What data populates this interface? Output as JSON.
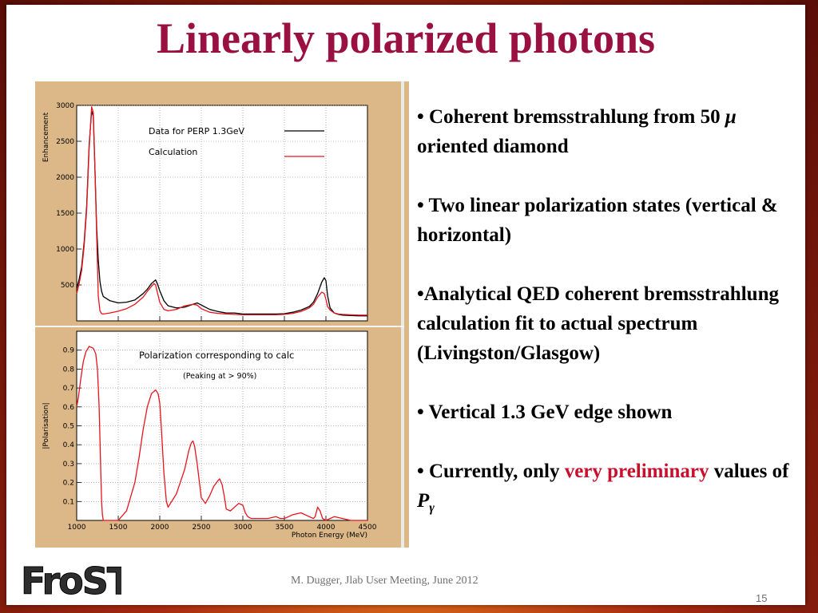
{
  "slide": {
    "title": "Linearly polarized photons",
    "footer": "M. Dugger, Jlab User Meeting, June 2012",
    "page_number": "15",
    "logo_text": "FroST"
  },
  "bullets": [
    {
      "parts": [
        {
          "text": "• Coherent bremsstrahlung from 50 "
        },
        {
          "text": "μ",
          "italic": true
        },
        {
          "text": " oriented diamond"
        }
      ]
    },
    {
      "parts": [
        {
          "text": "• Two linear polarization states (vertical & horizontal)"
        }
      ]
    },
    {
      "parts": [
        {
          "text": "•Analytical QED coherent bremsstrahlung calculation fit to actual spectrum (Livingston/Glasgow)"
        }
      ]
    },
    {
      "parts": [
        {
          "text": "• Vertical 1.3 GeV edge shown"
        }
      ]
    },
    {
      "parts": [
        {
          "text": "• Currently, only "
        },
        {
          "text": "very preliminary",
          "red": true
        },
        {
          "text": " values of "
        },
        {
          "text": "P",
          "italic": true
        },
        {
          "text": "γ",
          "italic": true,
          "sub": true
        }
      ]
    }
  ],
  "colors": {
    "title": "#9a1040",
    "frame_bg": "#dcb889",
    "data_line": "#000000",
    "calc_line": "#e8141c",
    "highlight": "#c8102e"
  },
  "chart_data": [
    {
      "type": "line",
      "title": "",
      "ylabel": "Enhancement",
      "xlabel": "",
      "xlim": [
        1000,
        4500
      ],
      "ylim": [
        0,
        3000
      ],
      "yticks": [
        500,
        1000,
        1500,
        2000,
        2500,
        3000
      ],
      "y_tick_labels": [
        "500",
        "1000",
        "1500",
        "2000",
        "2500",
        "3000"
      ],
      "grid": true,
      "legend_position": "top-center",
      "series": [
        {
          "name": "Data for PERP 1.3GeV",
          "color": "#000000",
          "x": [
            1000,
            1030,
            1060,
            1090,
            1120,
            1150,
            1180,
            1200,
            1220,
            1240,
            1260,
            1280,
            1300,
            1320,
            1400,
            1500,
            1600,
            1700,
            1800,
            1850,
            1900,
            1930,
            1950,
            1970,
            2000,
            2050,
            2100,
            2200,
            2300,
            2400,
            2450,
            2500,
            2600,
            2700,
            2800,
            2900,
            3000,
            3200,
            3400,
            3500,
            3600,
            3700,
            3800,
            3850,
            3900,
            3950,
            3980,
            4000,
            4020,
            4050,
            4100,
            4150,
            4200,
            4300,
            4400,
            4450,
            4500
          ],
          "y": [
            450,
            580,
            750,
            1100,
            1600,
            2450,
            2920,
            2850,
            2100,
            1300,
            850,
            550,
            410,
            340,
            280,
            250,
            260,
            290,
            380,
            440,
            520,
            550,
            570,
            520,
            420,
            280,
            210,
            180,
            190,
            230,
            250,
            220,
            160,
            130,
            110,
            110,
            95,
            95,
            95,
            100,
            120,
            150,
            200,
            260,
            380,
            540,
            600,
            560,
            350,
            180,
            110,
            90,
            80,
            75,
            70,
            70,
            70
          ]
        },
        {
          "name": "Calculation",
          "color": "#e8141c",
          "x": [
            1000,
            1030,
            1060,
            1090,
            1120,
            1150,
            1180,
            1200,
            1220,
            1240,
            1260,
            1280,
            1300,
            1320,
            1400,
            1500,
            1600,
            1700,
            1800,
            1850,
            1900,
            1930,
            1950,
            1970,
            2000,
            2050,
            2100,
            2200,
            2300,
            2400,
            2450,
            2500,
            2600,
            2700,
            2800,
            2900,
            3000,
            3200,
            3400,
            3500,
            3600,
            3700,
            3800,
            3850,
            3900,
            3950,
            3980,
            4000,
            4020,
            4050,
            4100,
            4150,
            4200,
            4300,
            4400,
            4450,
            4500
          ],
          "y": [
            380,
            520,
            700,
            1050,
            1550,
            2400,
            2980,
            2900,
            2100,
            1200,
            350,
            140,
            100,
            95,
            110,
            135,
            170,
            230,
            330,
            410,
            480,
            520,
            500,
            400,
            260,
            160,
            140,
            160,
            210,
            230,
            220,
            170,
            120,
            105,
            95,
            90,
            85,
            85,
            85,
            90,
            105,
            130,
            180,
            230,
            330,
            400,
            380,
            300,
            200,
            150,
            110,
            95,
            90,
            85,
            80,
            80,
            80
          ]
        }
      ]
    },
    {
      "type": "line",
      "title": "Polarization corresponding to calc",
      "subtitle": "(Peaking at > 90%)",
      "xlabel": "Photon Energy (MeV)",
      "ylabel": "|Polarisation|",
      "xlim": [
        1000,
        4500
      ],
      "ylim": [
        0,
        1.0
      ],
      "xticks": [
        1000,
        1500,
        2000,
        2500,
        3000,
        3500,
        4000,
        4500
      ],
      "x_tick_labels": [
        "1000",
        "1500",
        "2000",
        "2500",
        "3000",
        "3500",
        "4000",
        "4500"
      ],
      "yticks": [
        0.1,
        0.2,
        0.3,
        0.4,
        0.5,
        0.6,
        0.7,
        0.8,
        0.9
      ],
      "y_tick_labels": [
        "0.1",
        "0.2",
        "0.3",
        "0.4",
        "0.5",
        "0.6",
        "0.7",
        "0.8",
        "0.9"
      ],
      "grid": true,
      "series": [
        {
          "name": "",
          "color": "#e8141c",
          "x": [
            1000,
            1020,
            1050,
            1080,
            1110,
            1150,
            1200,
            1230,
            1250,
            1270,
            1290,
            1300,
            1310,
            1320,
            1400,
            1500,
            1600,
            1700,
            1750,
            1800,
            1850,
            1900,
            1950,
            1980,
            2000,
            2020,
            2050,
            2080,
            2100,
            2200,
            2300,
            2350,
            2380,
            2400,
            2420,
            2450,
            2500,
            2550,
            2600,
            2650,
            2700,
            2720,
            2750,
            2780,
            2800,
            2850,
            2900,
            2950,
            3000,
            3030,
            3060,
            3100,
            3200,
            3300,
            3400,
            3450,
            3500,
            3550,
            3600,
            3700,
            3800,
            3850,
            3870,
            3900,
            3930,
            3960,
            4000,
            4050,
            4100,
            4200,
            4300,
            4400,
            4500
          ],
          "y": [
            0.6,
            0.65,
            0.75,
            0.84,
            0.89,
            0.92,
            0.91,
            0.88,
            0.8,
            0.6,
            0.25,
            0.1,
            0.03,
            0.0,
            0.0,
            0.0,
            0.05,
            0.2,
            0.33,
            0.48,
            0.6,
            0.67,
            0.69,
            0.67,
            0.62,
            0.48,
            0.25,
            0.1,
            0.07,
            0.14,
            0.27,
            0.37,
            0.41,
            0.42,
            0.39,
            0.3,
            0.12,
            0.09,
            0.13,
            0.18,
            0.21,
            0.22,
            0.19,
            0.12,
            0.06,
            0.05,
            0.07,
            0.09,
            0.08,
            0.04,
            0.02,
            0.01,
            0.01,
            0.01,
            0.02,
            0.01,
            0.01,
            0.02,
            0.03,
            0.04,
            0.02,
            0.01,
            0.02,
            0.07,
            0.05,
            0.01,
            0.0,
            0.01,
            0.02,
            0.01,
            0.0,
            0.0,
            0.0
          ]
        }
      ]
    }
  ]
}
